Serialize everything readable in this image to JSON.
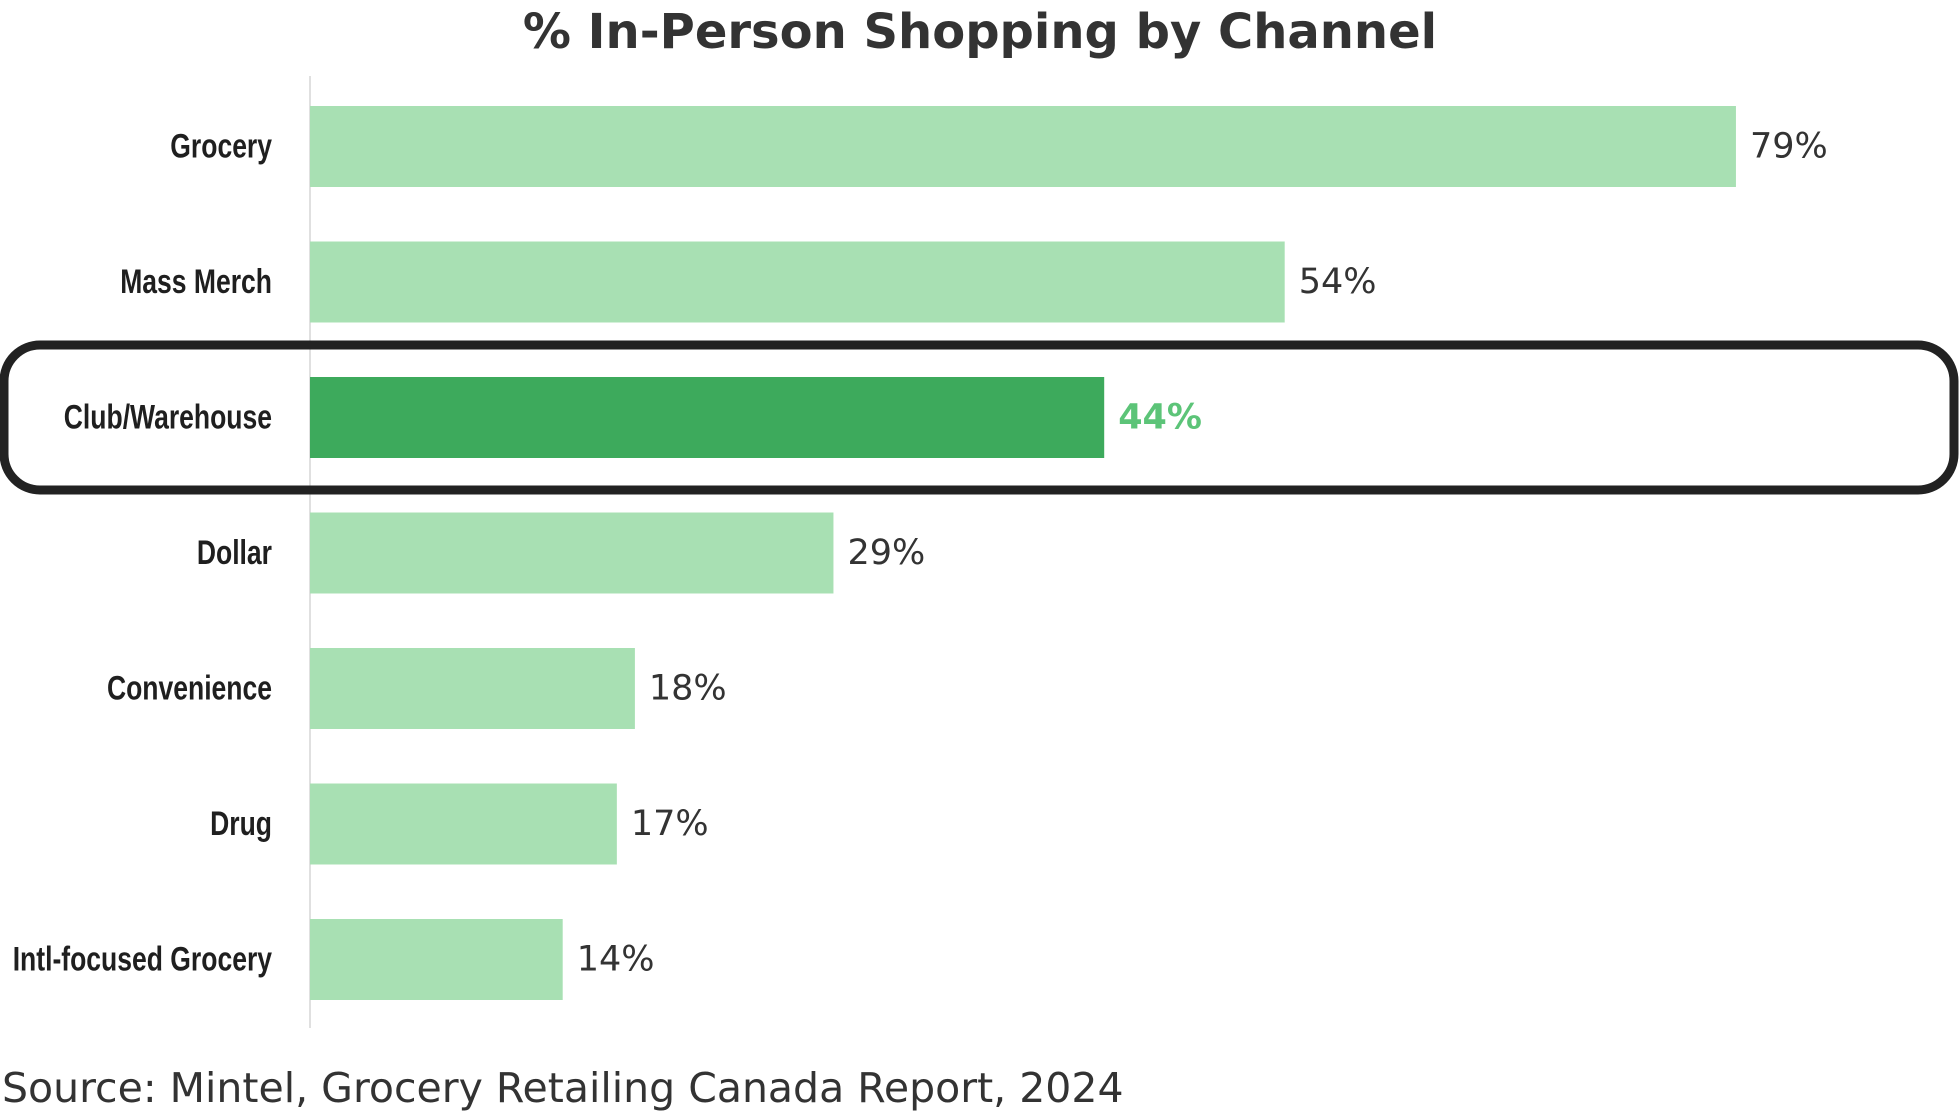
{
  "chart_data": {
    "type": "bar",
    "orientation": "horizontal",
    "title": "% In-Person Shopping by Channel",
    "categories": [
      "Grocery",
      "Mass Merch",
      "Club/Warehouse",
      "Dollar",
      "Convenience",
      "Drug",
      "Intl-focused Grocery"
    ],
    "values": [
      79,
      54,
      44,
      29,
      18,
      17,
      14
    ],
    "value_labels": [
      "79%",
      "54%",
      "44%",
      "29%",
      "18%",
      "17%",
      "14%"
    ],
    "highlighted_category": "Club/Warehouse",
    "xlim": [
      0,
      100
    ],
    "grid": false,
    "legend": "none",
    "colors": {
      "bar": "#a8e0b3",
      "bar_highlight": "#3daa5c",
      "label_highlight": "#5cc478",
      "highlight_frame": "#222222",
      "text": "#333333"
    }
  },
  "source": "Source: Mintel, Grocery Retailing Canada Report, 2024"
}
